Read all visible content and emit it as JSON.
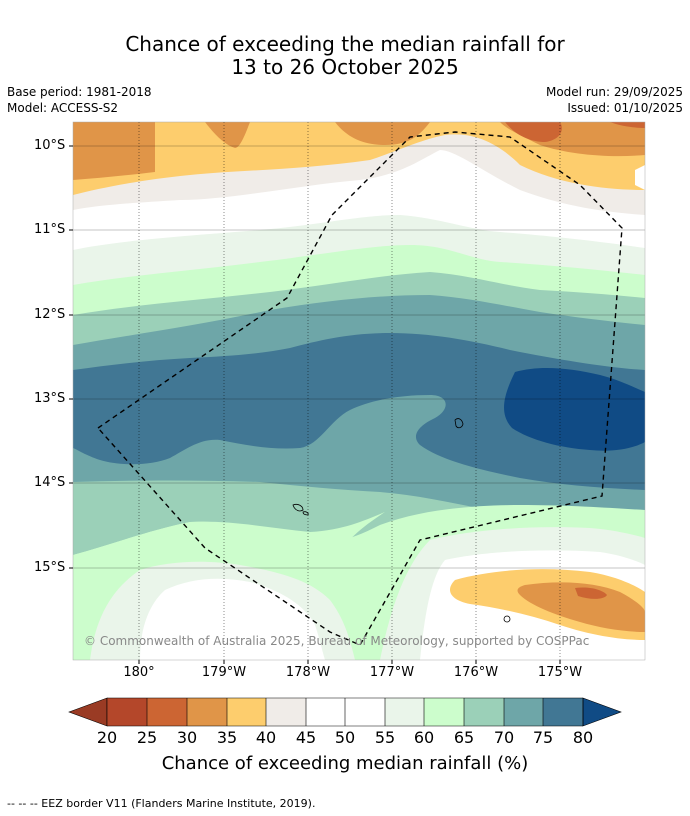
{
  "title_line1": "Chance of exceeding the median rainfall for",
  "title_line2": "13 to 26 October 2025",
  "base_period": "Base period: 1981-2018",
  "model": "Model: ACCESS-S2",
  "model_run": "Model run: 29/09/2025",
  "issued": "Issued: 01/10/2025",
  "lat_labels": [
    "10°S",
    "11°S",
    "12°S",
    "13°S",
    "14°S",
    "15°S"
  ],
  "lon_labels": [
    "180°",
    "179°W",
    "178°W",
    "177°W",
    "176°W",
    "175°W"
  ],
  "copyright": "© Commonwealth of Australia 2025, Bureau of Meteorology, supported by COSPPac",
  "colorbar": {
    "title": "Chance of exceeding median rainfall (%)",
    "ticks": [
      "20",
      "25",
      "30",
      "35",
      "40",
      "45",
      "50",
      "55",
      "60",
      "65",
      "70",
      "75",
      "80"
    ],
    "colors": {
      "lt20": "#9a3b24",
      "c20_25": "#b4472a",
      "c25_30": "#cc6533",
      "c30_35": "#e09548",
      "c35_40": "#fdcd6d",
      "c40_45": "#f0ece8",
      "c45_50": "#ffffff",
      "c50_55": "#ffffff",
      "c55_60": "#eaf5ea",
      "c60_65": "#ccfdcc",
      "c65_70": "#9bd0b8",
      "c70_75": "#6ea6a8",
      "c75_80": "#417794",
      "gt80": "#104b85"
    }
  },
  "footer": "--  --  -- EEZ border V11 (Flanders Marine Institute, 2019)."
}
